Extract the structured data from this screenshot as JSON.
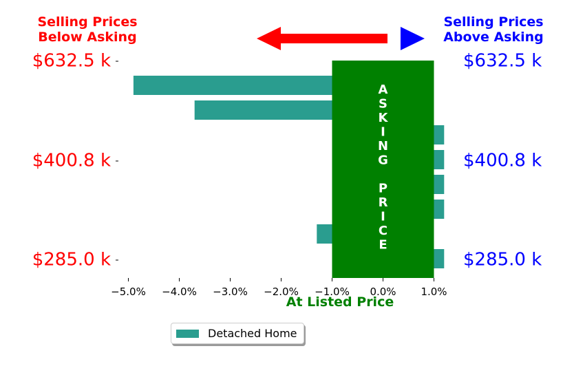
{
  "header": {
    "left_title_line1": "Selling Prices",
    "left_title_line2": "Below Asking",
    "right_title_line1": "Selling Prices",
    "right_title_line2": "Above Asking"
  },
  "colors": {
    "bar": "#2a9d8f",
    "asking_band": "#008000",
    "left_text": "#ff0000",
    "right_text": "#0000ff",
    "left_arrow": "#ff0000",
    "right_arrow": "#0000ff",
    "xlabel": "#008000"
  },
  "chart_data": {
    "type": "bar",
    "orientation": "horizontal",
    "series": [
      {
        "name": "Detached Home",
        "values": [
          -4.9,
          -3.7,
          1.2,
          1.2,
          1.2,
          1.2,
          -1.3,
          1.2
        ]
      }
    ],
    "xlim": [
      -5.5,
      1.2
    ],
    "xticks": [
      -5,
      -4,
      -3,
      -2,
      -1,
      0,
      1
    ],
    "xtick_labels": [
      "−5.0%",
      "−4.0%",
      "−3.0%",
      "−2.0%",
      "−1.0%",
      "0.0%",
      "1.0%"
    ],
    "xlabel": "At Listed Price",
    "y_tick_labels_left": [
      "$632.5 k",
      "$400.8 k",
      "$285.0 k"
    ],
    "y_tick_labels_right": [
      "$632.5 k",
      "$400.8 k",
      "$285.0 k"
    ],
    "asking_band": {
      "x_range": [
        -1.0,
        1.0
      ],
      "label_letters": [
        "A",
        "S",
        "K",
        "I",
        "N",
        "G",
        "",
        "P",
        "R",
        "I",
        "C",
        "E"
      ]
    },
    "legend": {
      "placement": "lower-center",
      "entries": [
        "Detached Home"
      ]
    },
    "grid": false
  }
}
